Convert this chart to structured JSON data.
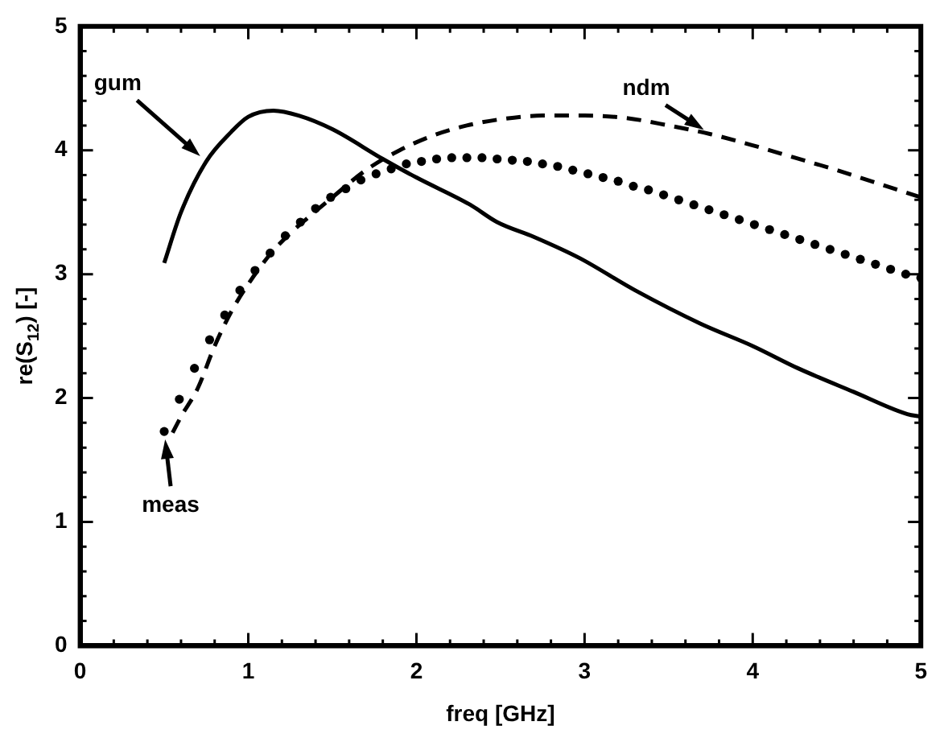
{
  "chart_data": {
    "type": "line",
    "xlabel": "freq [GHz]",
    "ylabel": "re(S$_{12}$) [-]",
    "xlim": [
      0,
      5
    ],
    "ylim": [
      0,
      5
    ],
    "xticks": [
      0,
      1,
      2,
      3,
      4,
      5
    ],
    "yticks": [
      0,
      1,
      2,
      3,
      4,
      5
    ],
    "grid": false,
    "series": [
      {
        "name": "gum",
        "color": "#000000",
        "line_style": "solid",
        "marker": "none",
        "x": [
          0.5,
          0.6,
          0.75,
          0.9,
          1.0,
          1.15,
          1.3,
          1.5,
          1.8,
          2.0,
          2.32,
          2.48,
          2.7,
          2.97,
          3.3,
          3.69,
          4.0,
          4.27,
          4.6,
          4.92,
          5.0
        ],
        "values": [
          3.09,
          3.5,
          3.91,
          4.15,
          4.27,
          4.32,
          4.28,
          4.17,
          3.93,
          3.78,
          3.56,
          3.42,
          3.3,
          3.13,
          2.87,
          2.6,
          2.42,
          2.24,
          2.05,
          1.87,
          1.85
        ]
      },
      {
        "name": "ndm",
        "color": "#000000",
        "line_style": "dashed",
        "marker": "none",
        "x": [
          0.55,
          0.6,
          0.7,
          0.8,
          0.9,
          1.0,
          1.13,
          1.25,
          1.35,
          1.5,
          1.7,
          1.9,
          2.1,
          2.3,
          2.5,
          2.75,
          3.0,
          3.25,
          3.5,
          3.75,
          4.0,
          4.25,
          4.5,
          4.75,
          5.0
        ],
        "values": [
          1.72,
          1.85,
          2.08,
          2.42,
          2.7,
          2.92,
          3.16,
          3.33,
          3.45,
          3.62,
          3.84,
          4.0,
          4.12,
          4.2,
          4.25,
          4.28,
          4.28,
          4.26,
          4.2,
          4.13,
          4.04,
          3.94,
          3.84,
          3.73,
          3.62
        ]
      },
      {
        "name": "meas",
        "type": "scatter",
        "color": "#000000",
        "marker": "circle",
        "x": [
          0.5,
          0.59,
          0.68,
          0.77,
          0.86,
          0.95,
          1.04,
          1.13,
          1.22,
          1.31,
          1.4,
          1.49,
          1.58,
          1.67,
          1.76,
          1.85,
          1.94,
          2.03,
          2.12,
          2.21,
          2.3,
          2.39,
          2.48,
          2.57,
          2.66,
          2.75,
          2.84,
          2.93,
          3.02,
          3.11,
          3.2,
          3.29,
          3.38,
          3.47,
          3.56,
          3.65,
          3.74,
          3.83,
          3.92,
          4.01,
          4.1,
          4.19,
          4.28,
          4.37,
          4.46,
          4.55,
          4.64,
          4.73,
          4.82,
          4.91,
          5.0
        ],
        "values": [
          1.73,
          1.99,
          2.24,
          2.47,
          2.67,
          2.87,
          3.03,
          3.17,
          3.31,
          3.42,
          3.53,
          3.62,
          3.69,
          3.76,
          3.81,
          3.85,
          3.89,
          3.91,
          3.93,
          3.94,
          3.94,
          3.94,
          3.93,
          3.92,
          3.91,
          3.89,
          3.87,
          3.84,
          3.81,
          3.78,
          3.75,
          3.71,
          3.68,
          3.64,
          3.6,
          3.56,
          3.52,
          3.48,
          3.44,
          3.4,
          3.36,
          3.32,
          3.28,
          3.24,
          3.2,
          3.16,
          3.12,
          3.08,
          3.04,
          3.0,
          2.97
        ]
      }
    ]
  }
}
